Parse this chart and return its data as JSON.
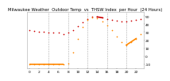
{
  "title": "Milwaukee Weather  Outdoor Temp  vs  THSW Index  per Hour  (24 Hours)",
  "bg_color": "#ffffff",
  "plot_bg_color": "#ffffff",
  "text_color": "#000000",
  "grid_color": "#aaaaaa",
  "hours": [
    0,
    1,
    2,
    3,
    4,
    5,
    6,
    7,
    8,
    9,
    10,
    11,
    12,
    13,
    14,
    15,
    16,
    17,
    18,
    19,
    20,
    21,
    22,
    23
  ],
  "outdoor_temp": [
    32,
    31,
    30,
    30,
    29,
    29,
    29,
    28,
    29,
    32,
    37,
    42,
    46,
    49,
    49,
    48,
    46,
    45,
    44,
    43,
    43,
    44,
    45,
    46
  ],
  "thsw_index": [
    -10,
    -10,
    -10,
    -10,
    -10,
    -10,
    -10,
    -10,
    -9,
    5,
    22,
    36,
    45,
    48,
    47,
    43,
    38,
    32,
    25,
    18,
    14,
    18,
    22,
    28
  ],
  "outdoor_temp_has_line": [
    [
      14,
      15
    ]
  ],
  "thsw_line_segments": [
    [
      20,
      22
    ]
  ],
  "ylim": [
    -15,
    55
  ],
  "xlim": [
    -0.5,
    23.5
  ],
  "ytick_vals": [
    -10,
    0,
    10,
    20,
    30,
    40,
    50
  ],
  "xtick_vals": [
    0,
    2,
    4,
    6,
    8,
    10,
    12,
    14,
    16,
    18,
    20,
    22
  ],
  "temp_color": "#cc0000",
  "thsw_color": "#ff8800",
  "marker_size": 1.5,
  "title_fontsize": 3.8,
  "tick_fontsize": 3.2,
  "vgrid_positions": [
    4,
    8,
    12,
    16,
    20
  ],
  "thsw_flat_end": 7,
  "thsw_flat_y": -10,
  "temp_line_x": [
    14,
    15
  ],
  "temp_line_y": [
    49,
    48
  ],
  "thsw_line_x": [
    20,
    22
  ],
  "thsw_line_y": [
    14,
    22
  ]
}
